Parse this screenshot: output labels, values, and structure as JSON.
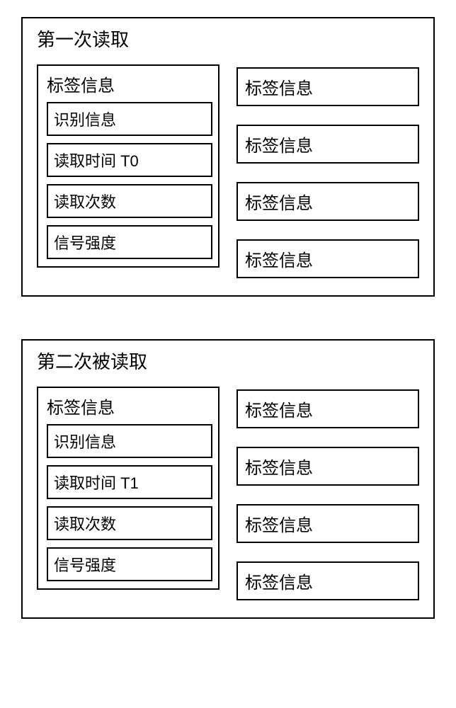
{
  "reads": [
    {
      "title": "第一次读取",
      "tagInfoLabel": "标签信息",
      "fields": [
        "识别信息",
        "读取时间  T0",
        "读取次数",
        "信号强度"
      ],
      "rightItems": [
        "标签信息",
        "标签信息",
        "标签信息",
        "标签信息"
      ]
    },
    {
      "title": "第二次被读取",
      "tagInfoLabel": "标签信息",
      "fields": [
        "识别信息",
        "读取时间  T1",
        "读取次数",
        "信号强度"
      ],
      "rightItems": [
        "标签信息",
        "标签信息",
        "标签信息",
        "标签信息"
      ]
    }
  ],
  "style": {
    "border_color": "#000000",
    "background_color": "#ffffff",
    "title_fontsize": 26,
    "field_fontsize": 22,
    "tag_fontsize": 24,
    "border_width": 2,
    "block_gap": 60,
    "right_item_gap": 26
  }
}
